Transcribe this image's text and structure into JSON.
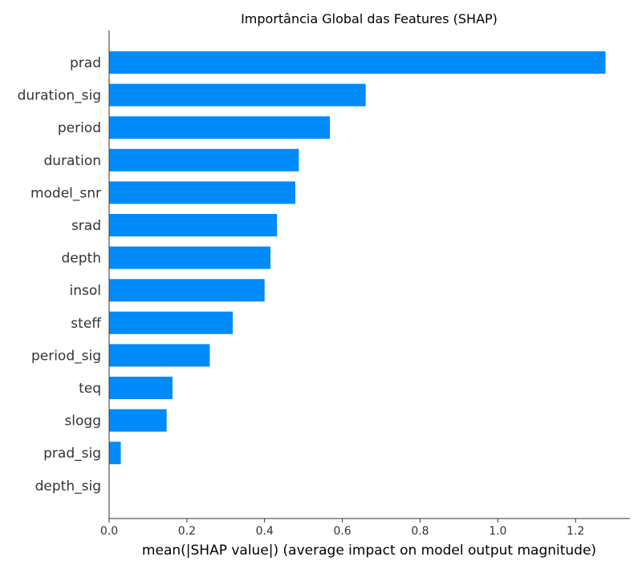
{
  "chart_data": {
    "type": "bar",
    "orientation": "horizontal",
    "title": "Importância Global das Features (SHAP)",
    "xlabel": "mean(|SHAP value|) (average impact on model output magnitude)",
    "ylabel": "",
    "categories": [
      "prad",
      "duration_sig",
      "period",
      "duration",
      "model_snr",
      "srad",
      "depth",
      "insol",
      "steff",
      "period_sig",
      "teq",
      "slogg",
      "prad_sig",
      "depth_sig"
    ],
    "values": [
      1.277,
      0.66,
      0.568,
      0.488,
      0.479,
      0.432,
      0.415,
      0.4,
      0.318,
      0.259,
      0.163,
      0.148,
      0.03,
      0.0
    ],
    "xlim": [
      0.0,
      1.34
    ],
    "xticks": [
      "0.0",
      "0.2",
      "0.4",
      "0.6",
      "0.8",
      "1.0",
      "1.2"
    ],
    "bar_color": "#008bfb",
    "grid": false,
    "legend": "none"
  }
}
